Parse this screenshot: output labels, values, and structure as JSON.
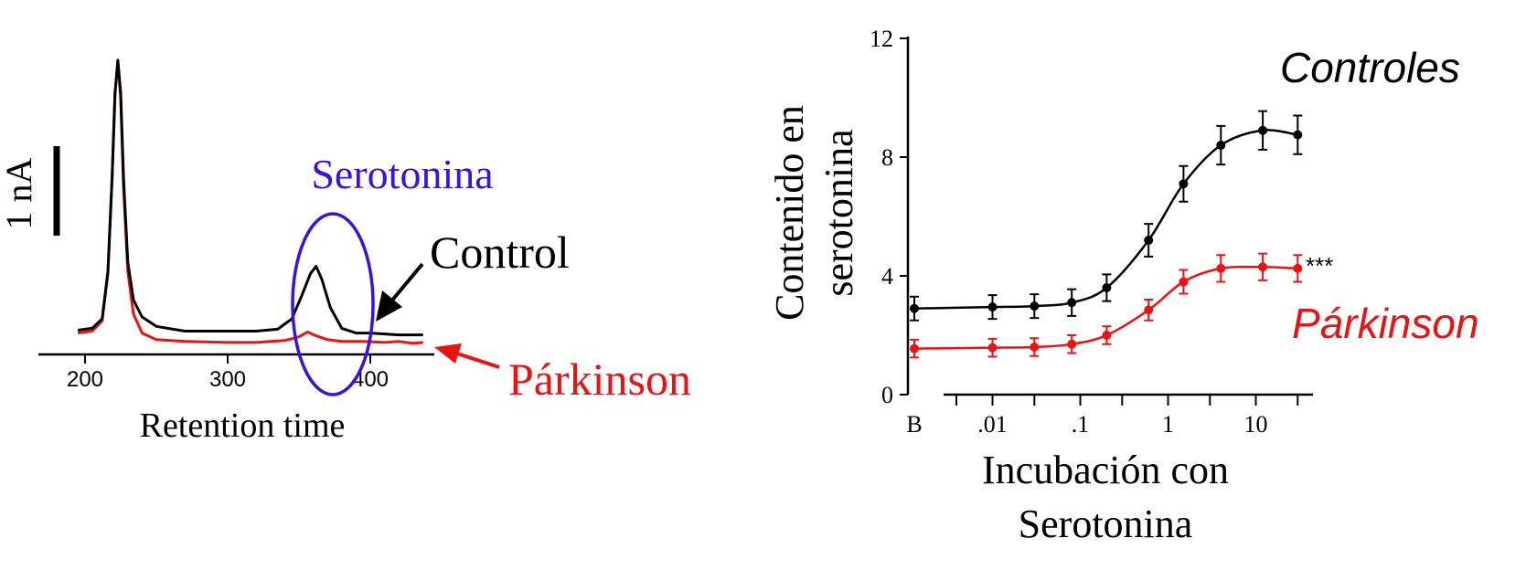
{
  "colors": {
    "control": "#000000",
    "parkinson": "#ee1111",
    "serotonin_highlight": "#3a10e6"
  },
  "chart_data": [
    {
      "type": "line",
      "title": "",
      "xlabel": "Retention time",
      "ylabel": "",
      "xticks": [
        "200",
        "300",
        "400"
      ],
      "xlim": [
        175,
        440
      ],
      "scale_bar_label": "1 nA",
      "annotations": {
        "highlight": "Serotonina",
        "control_label": "Control",
        "parkinson_label": "Párkinson"
      },
      "series": [
        {
          "name": "Control",
          "color": "#000000",
          "x": [
            195,
            205,
            212,
            216,
            219,
            221,
            223,
            225,
            227,
            230,
            234,
            240,
            250,
            270,
            300,
            320,
            335,
            345,
            352,
            358,
            362,
            366,
            372,
            380,
            390,
            400,
            420,
            437
          ],
          "y": [
            0.18,
            0.2,
            0.3,
            0.8,
            1.8,
            2.7,
            3.05,
            2.7,
            1.8,
            0.9,
            0.5,
            0.32,
            0.22,
            0.17,
            0.17,
            0.17,
            0.19,
            0.3,
            0.55,
            0.78,
            0.86,
            0.72,
            0.42,
            0.2,
            0.15,
            0.15,
            0.13,
            0.13
          ]
        },
        {
          "name": "Párkinson",
          "color": "#ee1111",
          "x": [
            195,
            205,
            212,
            216,
            219,
            221,
            223,
            225,
            227,
            230,
            234,
            240,
            250,
            270,
            300,
            320,
            340,
            350,
            356,
            362,
            370,
            380,
            395,
            410,
            420,
            430,
            437
          ],
          "y": [
            0.15,
            0.17,
            0.28,
            0.78,
            1.8,
            2.7,
            3.02,
            2.65,
            1.7,
            0.8,
            0.35,
            0.15,
            0.08,
            0.06,
            0.05,
            0.05,
            0.07,
            0.11,
            0.16,
            0.12,
            0.08,
            0.06,
            0.06,
            0.05,
            0.06,
            0.04,
            0.05
          ]
        }
      ]
    },
    {
      "type": "line",
      "title": "",
      "xlabel": "Incubación con Serotonina",
      "ylabel": "Contenido en serotonina",
      "ylim": [
        0,
        12
      ],
      "yticks": [
        "0",
        "4",
        "8",
        "12"
      ],
      "xscale": "log",
      "xticks": [
        "B",
        ".01",
        ".1",
        "1",
        "10"
      ],
      "annotations": {
        "controls_label": "Controles",
        "parkinson_label": "Párkinson",
        "significance": "***"
      },
      "series": [
        {
          "name": "Controles",
          "color": "#000000",
          "x": [
            "B",
            0.01,
            0.03,
            0.08,
            0.2,
            0.6,
            1.5,
            4,
            12,
            30
          ],
          "y": [
            2.9,
            2.95,
            2.98,
            3.1,
            3.6,
            5.2,
            7.1,
            8.4,
            8.9,
            8.75
          ],
          "err": [
            0.4,
            0.4,
            0.4,
            0.45,
            0.45,
            0.55,
            0.6,
            0.65,
            0.65,
            0.65
          ]
        },
        {
          "name": "Párkinson",
          "color": "#ee1111",
          "x": [
            "B",
            0.01,
            0.03,
            0.08,
            0.2,
            0.6,
            1.5,
            4,
            12,
            30
          ],
          "y": [
            1.55,
            1.58,
            1.6,
            1.7,
            2.0,
            2.85,
            3.8,
            4.25,
            4.3,
            4.25
          ],
          "err": [
            0.3,
            0.3,
            0.3,
            0.3,
            0.3,
            0.35,
            0.4,
            0.45,
            0.45,
            0.45
          ]
        }
      ]
    }
  ]
}
